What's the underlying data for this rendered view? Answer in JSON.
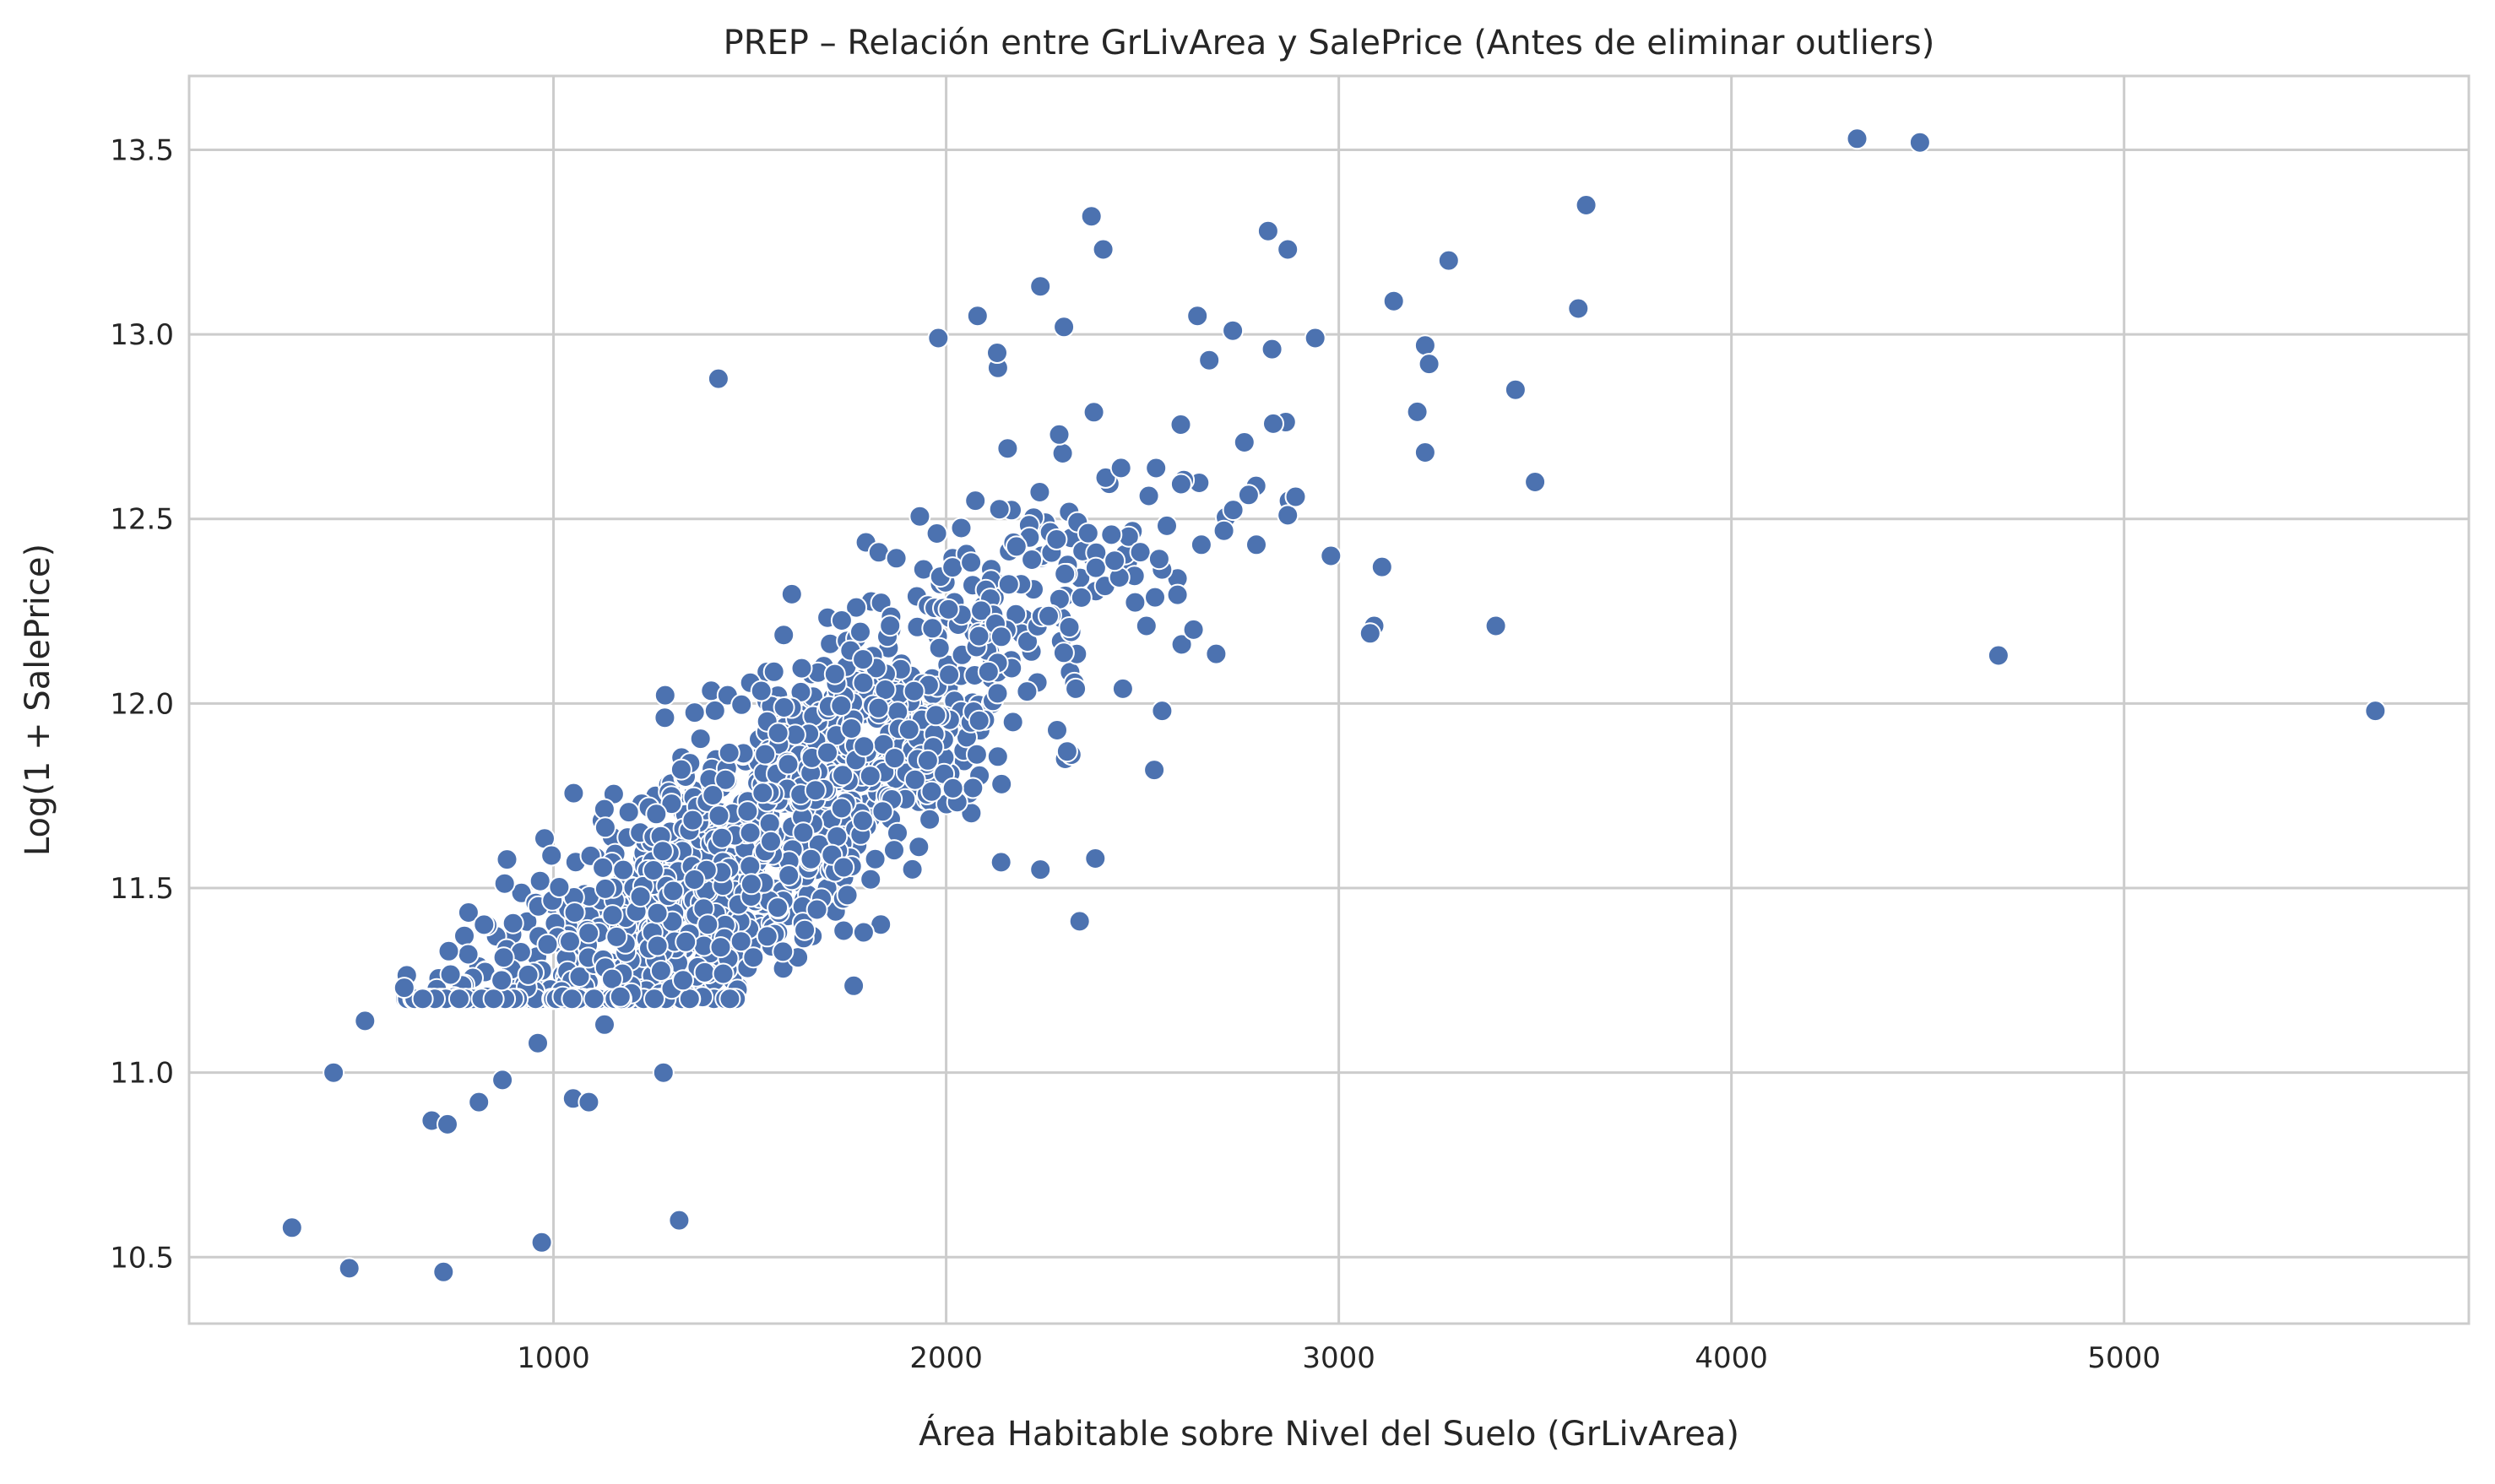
{
  "chart_data": {
    "type": "scatter",
    "title": "PREP – Relación entre GrLivArea y SalePrice (Antes de eliminar outliers)",
    "xlabel": "Área Habitable sobre Nivel del Suelo (GrLivArea)",
    "ylabel": "Log(1 + SalePrice)",
    "xlim": [
      72,
      5878
    ],
    "ylim": [
      10.32,
      13.7
    ],
    "xticks": [
      1000,
      2000,
      3000,
      4000,
      5000
    ],
    "yticks": [
      10.5,
      11.0,
      11.5,
      12.0,
      12.5,
      13.0,
      13.5
    ],
    "ytick_labels": [
      "10.5",
      "11.0",
      "11.5",
      "12.0",
      "12.5",
      "13.0",
      "13.5"
    ],
    "grid": true,
    "color": "#4c72b0",
    "highlighted_points": [
      {
        "x": 334,
        "y": 10.58
      },
      {
        "x": 480,
        "y": 10.47
      },
      {
        "x": 720,
        "y": 10.46
      },
      {
        "x": 970,
        "y": 10.54
      },
      {
        "x": 1320,
        "y": 10.6
      },
      {
        "x": 440,
        "y": 11.0
      },
      {
        "x": 520,
        "y": 11.14
      },
      {
        "x": 690,
        "y": 10.87
      },
      {
        "x": 730,
        "y": 10.86
      },
      {
        "x": 810,
        "y": 10.92
      },
      {
        "x": 870,
        "y": 10.98
      },
      {
        "x": 1050,
        "y": 10.93
      },
      {
        "x": 1090,
        "y": 10.92
      },
      {
        "x": 1280,
        "y": 11.0
      },
      {
        "x": 1420,
        "y": 12.88
      },
      {
        "x": 2080,
        "y": 13.05
      },
      {
        "x": 2240,
        "y": 13.13
      },
      {
        "x": 2370,
        "y": 13.32
      },
      {
        "x": 2400,
        "y": 13.23
      },
      {
        "x": 2820,
        "y": 13.28
      },
      {
        "x": 2870,
        "y": 13.23
      },
      {
        "x": 3140,
        "y": 13.09
      },
      {
        "x": 3280,
        "y": 13.2
      },
      {
        "x": 3630,
        "y": 13.35
      },
      {
        "x": 3610,
        "y": 13.07
      },
      {
        "x": 2940,
        "y": 12.99
      },
      {
        "x": 3220,
        "y": 12.97
      },
      {
        "x": 3230,
        "y": 12.92
      },
      {
        "x": 3450,
        "y": 12.85
      },
      {
        "x": 3200,
        "y": 12.79
      },
      {
        "x": 3220,
        "y": 12.68
      },
      {
        "x": 3500,
        "y": 12.6
      },
      {
        "x": 2980,
        "y": 12.4
      },
      {
        "x": 3110,
        "y": 12.37
      },
      {
        "x": 3090,
        "y": 12.21
      },
      {
        "x": 3080,
        "y": 12.19
      },
      {
        "x": 3400,
        "y": 12.21
      },
      {
        "x": 4320,
        "y": 13.53
      },
      {
        "x": 4480,
        "y": 13.52
      },
      {
        "x": 4680,
        "y": 12.13
      },
      {
        "x": 5640,
        "y": 11.98
      },
      {
        "x": 2340,
        "y": 11.41
      },
      {
        "x": 1790,
        "y": 11.38
      },
      {
        "x": 2140,
        "y": 11.57
      },
      {
        "x": 2240,
        "y": 11.55
      },
      {
        "x": 2380,
        "y": 11.58
      },
      {
        "x": 2550,
        "y": 11.98
      },
      {
        "x": 2530,
        "y": 11.82
      },
      {
        "x": 2450,
        "y": 12.04
      },
      {
        "x": 2330,
        "y": 12.04
      },
      {
        "x": 2600,
        "y": 12.16
      },
      {
        "x": 2630,
        "y": 12.2
      },
      {
        "x": 2510,
        "y": 12.21
      },
      {
        "x": 2650,
        "y": 12.43
      },
      {
        "x": 2790,
        "y": 12.43
      },
      {
        "x": 2870,
        "y": 12.51
      },
      {
        "x": 2890,
        "y": 12.56
      },
      {
        "x": 2730,
        "y": 13.01
      },
      {
        "x": 2670,
        "y": 12.93
      },
      {
        "x": 2830,
        "y": 12.96
      },
      {
        "x": 1980,
        "y": 12.99
      },
      {
        "x": 2130,
        "y": 12.95
      },
      {
        "x": 2300,
        "y": 13.02
      },
      {
        "x": 2640,
        "y": 13.05
      },
      {
        "x": 960,
        "y": 11.08
      },
      {
        "x": 1130,
        "y": 11.13
      },
      {
        "x": 1330,
        "y": 11.25
      },
      {
        "x": 620,
        "y": 11.23
      },
      {
        "x": 760,
        "y": 11.2
      }
    ]
  }
}
